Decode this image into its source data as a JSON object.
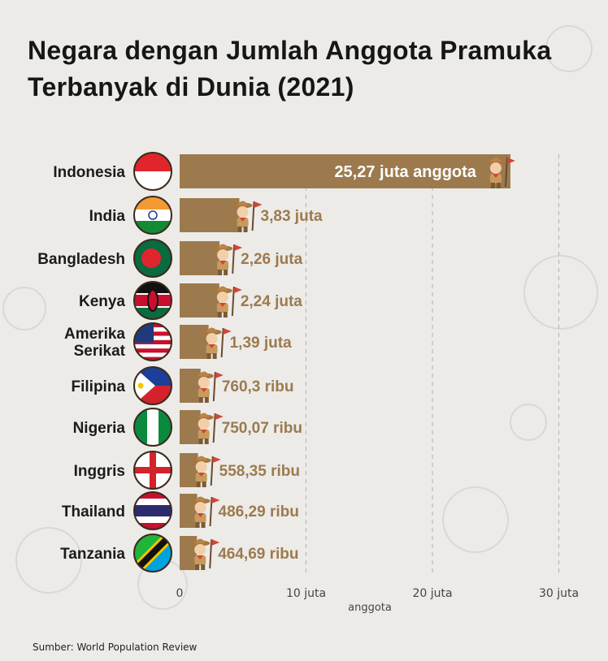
{
  "title": "Negara dengan Jumlah Anggota Pramuka Terbanyak di Dunia (2021)",
  "source": "Sumber: World Population Review",
  "colors": {
    "bar": "#9c7a4e",
    "label": "#9c7a4e",
    "text": "#1b1b1b",
    "grid": "#b9b9b9"
  },
  "chart_data": {
    "type": "bar",
    "orientation": "horizontal",
    "categories": [
      "Indonesia",
      "India",
      "Bangladesh",
      "Kenya",
      "Amerika Serikat",
      "Filipina",
      "Nigeria",
      "Inggris",
      "Thailand",
      "Tanzania"
    ],
    "values": [
      25.27,
      3.83,
      2.26,
      2.24,
      1.39,
      0.7603,
      0.75007,
      0.55835,
      0.48629,
      0.46469
    ],
    "data_labels": [
      "25,27 juta anggota",
      "3,83 juta",
      "2,26 juta",
      "2,24 juta",
      "1,39 juta",
      "760,3 ribu",
      "750,07 ribu",
      "558,35 ribu",
      "486,29 ribu",
      "464,69 ribu"
    ],
    "xticks": [
      0,
      10,
      20,
      30
    ],
    "xtick_labels": [
      "0",
      "10 juta",
      "20 juta",
      "30 juta"
    ],
    "xlabel": "anggota",
    "xlim": [
      0,
      30
    ],
    "grid": "vertical dashed",
    "flags": [
      "indonesia-flag-icon",
      "india-flag-icon",
      "bangladesh-flag-icon",
      "kenya-flag-icon",
      "usa-flag-icon",
      "philippines-flag-icon",
      "nigeria-flag-icon",
      "england-flag-icon",
      "thailand-flag-icon",
      "tanzania-flag-icon"
    ]
  }
}
